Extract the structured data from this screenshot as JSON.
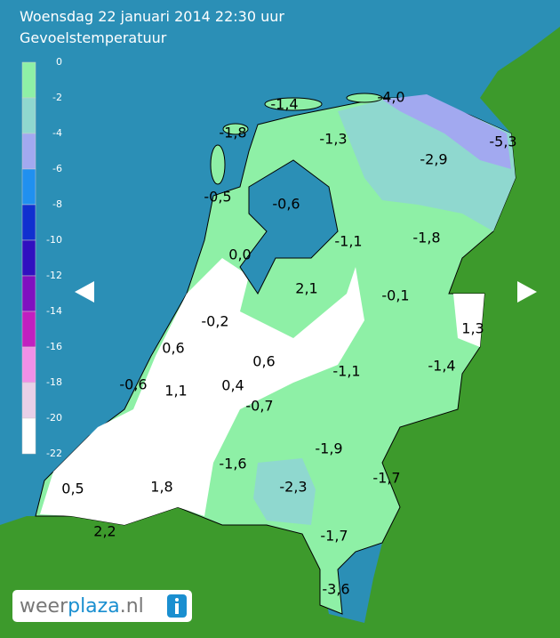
{
  "header": {
    "title": "Woensdag 22 januari 2014 22:30 uur",
    "subtitle": "Gevoelstemperatuur"
  },
  "legend": {
    "labels": [
      "0",
      "-2",
      "-4",
      "-6",
      "-8",
      "-10",
      "-12",
      "-14",
      "-16",
      "-18",
      "-20",
      "-22"
    ]
  },
  "map": {
    "labels": [
      "-1,4",
      "-4,0",
      "-1,8",
      "-1,3",
      "-5,3",
      "-2,9",
      "-0,5",
      "-0,6",
      "-1,1",
      "-1,8",
      "0,0",
      "2,1",
      "-0,1",
      "-0,2",
      "1,3",
      "0,6",
      "0,6",
      "-1,1",
      "-1,4",
      "-0,6",
      "1,1",
      "0,4",
      "-0,7",
      "-1,9",
      "-1,6",
      "-1,7",
      "0,5",
      "-2,3",
      "1,8",
      "2,2",
      "-1,7",
      "-3,6"
    ]
  },
  "logo": {
    "parts": [
      "weer",
      "plaza",
      ".nl"
    ]
  }
}
